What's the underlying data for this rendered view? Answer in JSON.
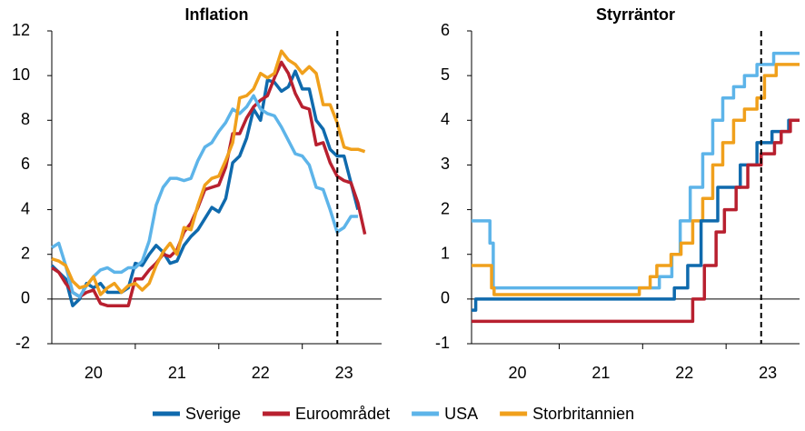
{
  "chart_data": [
    {
      "type": "line",
      "title": "Inflation",
      "xlim": [
        2020,
        2023.95
      ],
      "ylim": [
        -2,
        12
      ],
      "xticks": [
        {
          "value": 2020.5,
          "label": "20"
        },
        {
          "value": 2021.5,
          "label": "21"
        },
        {
          "value": 2022.5,
          "label": "22"
        },
        {
          "value": 2023.5,
          "label": "23"
        }
      ],
      "x_minor_ticks": [
        2021,
        2022,
        2023
      ],
      "yticks": [
        -2,
        0,
        2,
        4,
        6,
        8,
        10,
        12
      ],
      "vline": 2023.42,
      "series": [
        {
          "name": "Sverige",
          "color": "#0f6aad",
          "start": 2020,
          "step_x": 0.0833333,
          "values": [
            1.5,
            1.2,
            0.9,
            -0.3,
            0.0,
            0.7,
            0.5,
            0.7,
            0.3,
            0.3,
            0.3,
            0.5,
            1.6,
            1.5,
            2.0,
            2.4,
            2.1,
            1.6,
            1.7,
            2.4,
            2.8,
            3.1,
            3.6,
            4.1,
            3.9,
            4.5,
            6.1,
            6.4,
            7.2,
            8.5,
            8.0,
            9.8,
            9.7,
            9.3,
            9.5,
            10.2,
            9.4,
            9.4,
            8.0,
            7.6,
            6.7,
            6.4,
            6.4,
            5.2,
            4.0
          ]
        },
        {
          "name": "Euroområdet",
          "color": "#b8202f",
          "start": 2020,
          "step_x": 0.0833333,
          "values": [
            1.4,
            1.2,
            0.7,
            0.3,
            0.1,
            0.3,
            0.4,
            -0.2,
            -0.3,
            -0.3,
            -0.3,
            -0.3,
            0.9,
            0.9,
            1.3,
            1.6,
            2.0,
            1.9,
            2.2,
            3.0,
            3.4,
            4.1,
            4.9,
            5.0,
            5.1,
            5.9,
            7.4,
            7.4,
            8.1,
            8.6,
            8.9,
            9.1,
            9.9,
            10.6,
            10.1,
            9.2,
            8.6,
            8.5,
            6.9,
            7.0,
            6.1,
            5.5,
            5.3,
            5.2,
            4.3,
            2.9
          ]
        },
        {
          "name": "USA",
          "color": "#5db4e9",
          "start": 2020,
          "step_x": 0.0833333,
          "values": [
            2.3,
            2.5,
            1.5,
            0.3,
            0.1,
            0.6,
            1.0,
            1.3,
            1.4,
            1.2,
            1.2,
            1.4,
            1.4,
            1.7,
            2.6,
            4.2,
            5.0,
            5.4,
            5.4,
            5.3,
            5.4,
            6.2,
            6.8,
            7.0,
            7.5,
            7.9,
            8.5,
            8.3,
            8.6,
            9.1,
            8.5,
            8.3,
            8.2,
            7.7,
            7.1,
            6.5,
            6.4,
            6.0,
            5.0,
            4.9,
            4.0,
            3.0,
            3.2,
            3.7,
            3.7
          ]
        },
        {
          "name": "Storbritannien",
          "color": "#f0a01c",
          "start": 2020,
          "step_x": 0.0833333,
          "values": [
            1.8,
            1.7,
            1.5,
            0.8,
            0.5,
            0.6,
            1.0,
            0.2,
            0.5,
            0.7,
            0.3,
            0.6,
            0.7,
            0.4,
            0.7,
            1.5,
            2.1,
            2.5,
            2.0,
            3.2,
            3.1,
            4.2,
            5.1,
            5.4,
            5.5,
            6.2,
            7.0,
            9.0,
            9.1,
            9.4,
            10.1,
            9.9,
            10.1,
            11.1,
            10.7,
            10.5,
            10.1,
            10.4,
            10.1,
            8.7,
            8.7,
            7.9,
            6.8,
            6.7,
            6.7,
            6.6
          ]
        }
      ]
    },
    {
      "type": "step",
      "title": "Styrräntor",
      "xlim": [
        2019.95,
        2023.88
      ],
      "ylim": [
        -1,
        6
      ],
      "xticks": [
        {
          "value": 2020.5,
          "label": "20"
        },
        {
          "value": 2021.5,
          "label": "21"
        },
        {
          "value": 2022.5,
          "label": "22"
        },
        {
          "value": 2023.5,
          "label": "23"
        }
      ],
      "x_minor_ticks": [
        2021,
        2022,
        2023
      ],
      "yticks": [
        -1,
        0,
        1,
        2,
        3,
        4,
        5,
        6
      ],
      "vline": 2023.42,
      "series": [
        {
          "name": "USA",
          "color": "#5db4e9",
          "x": [
            2019.95,
            2020.17,
            2020.21,
            2022.2,
            2022.35,
            2022.45,
            2022.57,
            2022.72,
            2022.84,
            2022.96,
            2023.09,
            2023.22,
            2023.37,
            2023.57,
            2023.88
          ],
          "values": [
            1.75,
            1.25,
            0.25,
            0.5,
            1.0,
            1.75,
            2.5,
            3.25,
            4.0,
            4.5,
            4.75,
            5.0,
            5.25,
            5.5,
            5.5
          ]
        },
        {
          "name": "Storbritannien",
          "color": "#f0a01c",
          "x": [
            2019.95,
            2020.19,
            2020.22,
            2021.96,
            2022.09,
            2022.17,
            2022.34,
            2022.46,
            2022.6,
            2022.72,
            2022.84,
            2022.96,
            2023.09,
            2023.22,
            2023.37,
            2023.46,
            2023.6,
            2023.88
          ],
          "values": [
            0.75,
            0.25,
            0.1,
            0.25,
            0.5,
            0.75,
            1.0,
            1.25,
            1.75,
            2.25,
            3.0,
            3.5,
            4.0,
            4.25,
            4.5,
            5.0,
            5.25,
            5.25
          ]
        },
        {
          "name": "Sverige",
          "color": "#0f6aad",
          "x": [
            2019.95,
            2020.0,
            2022.38,
            2022.54,
            2022.7,
            2022.9,
            2023.17,
            2023.37,
            2023.55,
            2023.75,
            2023.88
          ],
          "values": [
            -0.25,
            0,
            0.25,
            0.75,
            1.75,
            2.5,
            3.0,
            3.5,
            3.75,
            4.0,
            4.0
          ]
        },
        {
          "name": "Euroområdet",
          "color": "#b8202f",
          "x": [
            2019.95,
            2022.6,
            2022.74,
            2022.88,
            2022.98,
            2023.12,
            2023.26,
            2023.42,
            2023.58,
            2023.66,
            2023.77,
            2023.88
          ],
          "values": [
            -0.5,
            0,
            0.75,
            1.5,
            2.0,
            2.5,
            3.0,
            3.25,
            3.5,
            3.75,
            4.0,
            4.0
          ]
        }
      ]
    }
  ]
}
